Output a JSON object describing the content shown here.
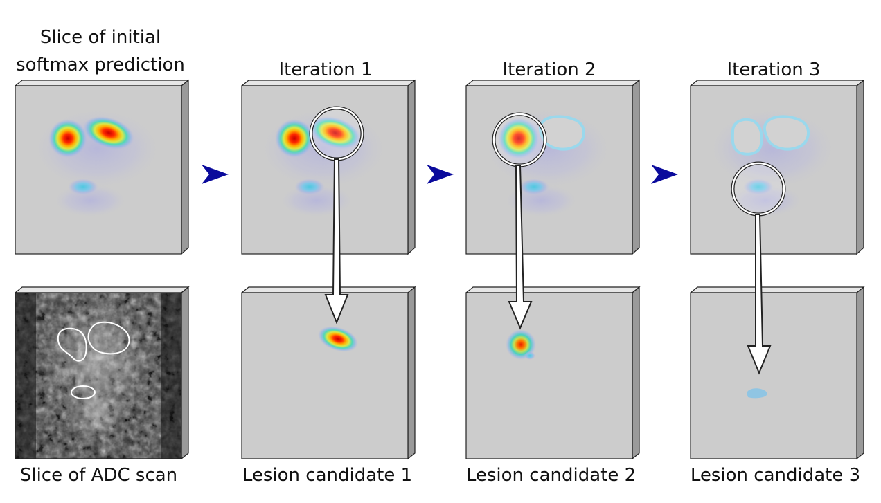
{
  "titles": {
    "initial": [
      "Slice of initial",
      "softmax prediction"
    ],
    "iter1": "Iteration 1",
    "iter2": "Iteration 2",
    "iter3": "Iteration 3"
  },
  "captions": {
    "adc": "Slice of ADC scan",
    "cand1": "Lesion candidate 1",
    "cand2": "Lesion candidate 2",
    "cand3": "Lesion candidate 3"
  },
  "colors": {
    "panel": "#cccccc",
    "arrow_blue": "#0a0a9c",
    "arrow_white": "#ffffff",
    "outline": "#222222"
  }
}
